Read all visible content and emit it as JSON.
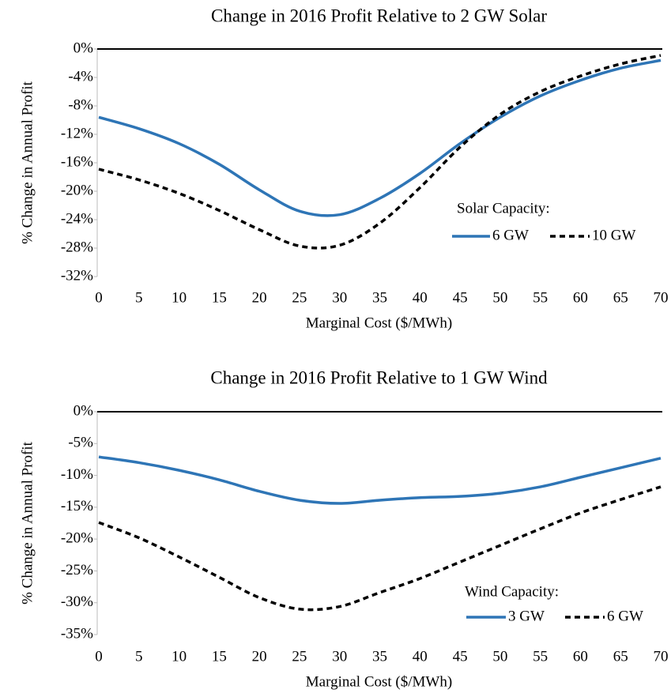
{
  "chart_data": [
    {
      "type": "line",
      "title": "Change in 2016 Profit Relative to 2 GW Solar",
      "x_label": "Marginal Cost ($/MWh)",
      "y_label": "% Change in Annual Profit",
      "x": [
        0,
        5,
        10,
        15,
        20,
        25,
        30,
        35,
        40,
        45,
        50,
        55,
        60,
        65,
        70
      ],
      "xlim": [
        0,
        70
      ],
      "xticks": [
        0,
        5,
        10,
        15,
        20,
        25,
        30,
        35,
        40,
        45,
        50,
        55,
        60,
        65,
        70
      ],
      "ylim": [
        -32,
        0
      ],
      "yticks": [
        {
          "value": 0,
          "label": "0%"
        },
        {
          "value": -4,
          "label": "-4%"
        },
        {
          "value": -8,
          "label": "-8%"
        },
        {
          "value": -12,
          "label": "-12%"
        },
        {
          "value": -16,
          "label": "-16%"
        },
        {
          "value": -20,
          "label": "-20%"
        },
        {
          "value": -24,
          "label": "-24%"
        },
        {
          "value": -28,
          "label": "-28%"
        },
        {
          "value": -32,
          "label": "-32%"
        }
      ],
      "legend": "lower right",
      "legend_title": "Solar Capacity:",
      "series": [
        {
          "name": "6 GW",
          "color": "#2e75b6",
          "linestyle": "solid",
          "values": [
            -9.6,
            -11.2,
            -13.3,
            -16.2,
            -19.8,
            -22.8,
            -23.3,
            -21.0,
            -17.5,
            -13.3,
            -9.6,
            -6.6,
            -4.4,
            -2.7,
            -1.6
          ]
        },
        {
          "name": "10 GW",
          "color": "#000000",
          "linestyle": "dashed",
          "values": [
            -16.9,
            -18.4,
            -20.3,
            -22.7,
            -25.4,
            -27.7,
            -27.6,
            -24.5,
            -19.5,
            -13.8,
            -9.2,
            -6.0,
            -3.8,
            -2.1,
            -0.9
          ]
        }
      ]
    },
    {
      "type": "line",
      "title": "Change in 2016 Profit Relative to 1 GW Wind",
      "x_label": "Marginal Cost ($/MWh)",
      "y_label": "% Change in Annual Profit",
      "x": [
        0,
        5,
        10,
        15,
        20,
        25,
        30,
        35,
        40,
        45,
        50,
        55,
        60,
        65,
        70
      ],
      "xlim": [
        0,
        70
      ],
      "xticks": [
        0,
        5,
        10,
        15,
        20,
        25,
        30,
        35,
        40,
        45,
        50,
        55,
        60,
        65,
        70
      ],
      "ylim": [
        -35,
        0
      ],
      "yticks": [
        {
          "value": 0,
          "label": "0%"
        },
        {
          "value": -5,
          "label": "-5%"
        },
        {
          "value": -10,
          "label": "-10%"
        },
        {
          "value": -15,
          "label": "-15%"
        },
        {
          "value": -20,
          "label": "-20%"
        },
        {
          "value": -25,
          "label": "-25%"
        },
        {
          "value": -30,
          "label": "-30%"
        },
        {
          "value": -35,
          "label": "-35%"
        }
      ],
      "legend": "lower right",
      "legend_title": "Wind Capacity:",
      "series": [
        {
          "name": "3 GW",
          "color": "#2e75b6",
          "linestyle": "solid",
          "values": [
            -7.1,
            -8.0,
            -9.2,
            -10.7,
            -12.5,
            -13.9,
            -14.4,
            -13.9,
            -13.5,
            -13.3,
            -12.8,
            -11.8,
            -10.3,
            -8.8,
            -7.3
          ]
        },
        {
          "name": "6 GW",
          "color": "#000000",
          "linestyle": "dashed",
          "values": [
            -17.4,
            -19.8,
            -22.8,
            -26.0,
            -29.2,
            -31.0,
            -30.6,
            -28.4,
            -26.2,
            -23.6,
            -21.0,
            -18.4,
            -15.9,
            -13.8,
            -11.8
          ]
        }
      ]
    }
  ]
}
